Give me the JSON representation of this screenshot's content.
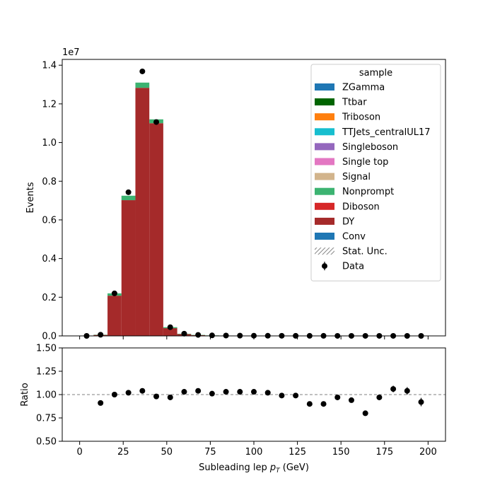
{
  "chart_data": [
    {
      "type": "bar",
      "subtype": "stacked-histogram-with-data-points",
      "yscale_label": "1e7",
      "ylabel": "Events",
      "xlim": [
        -10,
        210
      ],
      "ylim": [
        0,
        14300000.0
      ],
      "yticks": [
        "0.0",
        "0.2",
        "0.4",
        "0.6",
        "0.8",
        "1.0",
        "1.2",
        "1.4"
      ],
      "bin_edges": [
        0,
        8,
        16,
        24,
        32,
        40,
        48,
        56,
        64,
        72,
        80,
        88,
        96,
        104,
        112,
        120,
        128,
        136,
        144,
        152,
        160,
        168,
        176,
        184,
        192,
        200
      ],
      "stack_totals": [
        0,
        60000,
        2200000,
        7250000,
        13100000,
        11200000,
        450000,
        110000,
        50000,
        25000,
        18000,
        13000,
        10000,
        8000,
        6000,
        4500,
        3500,
        2700,
        2100,
        1600,
        1200,
        900,
        700,
        550,
        420
      ],
      "series": [
        {
          "name": "DY",
          "color": "#a52a2a",
          "values": [
            0,
            55000,
            2080000,
            7020000,
            12830000,
            11000000,
            400000,
            90000,
            40000,
            20000,
            14000,
            10000,
            7800,
            6200,
            4700,
            3500,
            2700,
            2100,
            1600,
            1200,
            900,
            700,
            550,
            420,
            320
          ]
        },
        {
          "name": "Nonprompt",
          "color": "#3cb371",
          "values": [
            0,
            5000,
            120000,
            230000,
            270000,
            200000,
            50000,
            20000,
            10000,
            5000,
            4000,
            3000,
            2200,
            1800,
            1300,
            1000,
            800,
            600,
            500,
            400,
            300,
            200,
            150,
            130,
            100
          ]
        }
      ],
      "data_points": {
        "name": "Data",
        "x": [
          4,
          12,
          20,
          28,
          36,
          44,
          52,
          60,
          68,
          76,
          84,
          92,
          100,
          108,
          116,
          124,
          132,
          140,
          148,
          156,
          164,
          172,
          180,
          188,
          196
        ],
        "y": [
          0,
          60000,
          2200000,
          7430000,
          13680000,
          11060000,
          450000,
          115000,
          52000,
          26000,
          18500,
          13300,
          10200,
          8100,
          6000,
          4450,
          3200,
          2450,
          2000,
          1500,
          950,
          870,
          740,
          570,
          390
        ]
      },
      "legend": {
        "title": "sample",
        "placement": "top-right",
        "entries": [
          {
            "label": "ZGamma",
            "color": "#1f77b4",
            "kind": "patch"
          },
          {
            "label": "Ttbar",
            "color": "#006400",
            "kind": "patch"
          },
          {
            "label": "Triboson",
            "color": "#ff7f0e",
            "kind": "patch"
          },
          {
            "label": "TTJets_centralUL17",
            "color": "#17becf",
            "kind": "patch"
          },
          {
            "label": "Singleboson",
            "color": "#9467bd",
            "kind": "patch"
          },
          {
            "label": "Single top",
            "color": "#e377c2",
            "kind": "patch"
          },
          {
            "label": "Signal",
            "color": "#d2b48c",
            "kind": "patch"
          },
          {
            "label": "Nonprompt",
            "color": "#3cb371",
            "kind": "patch"
          },
          {
            "label": "Diboson",
            "color": "#d62728",
            "kind": "patch"
          },
          {
            "label": "DY",
            "color": "#a52a2a",
            "kind": "patch"
          },
          {
            "label": "Conv",
            "color": "#1f77b4",
            "kind": "patch"
          },
          {
            "label": "Stat. Unc.",
            "color": "#888888",
            "kind": "hatch"
          },
          {
            "label": "Data",
            "color": "#000000",
            "kind": "errorbar"
          }
        ]
      }
    },
    {
      "type": "scatter",
      "subtype": "ratio-with-errorbars",
      "ylabel": "Ratio",
      "xlabel": "Subleading lep $p_T$ (GeV)",
      "xlim": [
        -10,
        210
      ],
      "ylim": [
        0.5,
        1.5
      ],
      "xticks": [
        "0",
        "25",
        "50",
        "75",
        "100",
        "125",
        "150",
        "175",
        "200"
      ],
      "yticks": [
        "0.50",
        "0.75",
        "1.00",
        "1.25",
        "1.50"
      ],
      "reference_line": 1.0,
      "x": [
        12,
        20,
        28,
        36,
        44,
        52,
        60,
        68,
        76,
        84,
        92,
        100,
        108,
        116,
        124,
        132,
        140,
        148,
        156,
        164,
        172,
        180,
        188,
        196
      ],
      "y": [
        0.91,
        1.0,
        1.02,
        1.04,
        0.98,
        0.97,
        1.03,
        1.04,
        1.01,
        1.03,
        1.03,
        1.03,
        1.02,
        0.99,
        0.99,
        0.9,
        0.9,
        0.97,
        0.94,
        0.8,
        0.97,
        1.06,
        1.04,
        0.92
      ],
      "yerr": [
        0.005,
        0.002,
        0.002,
        0.002,
        0.002,
        0.005,
        0.008,
        0.01,
        0.012,
        0.013,
        0.015,
        0.016,
        0.018,
        0.02,
        0.02,
        0.02,
        0.02,
        0.022,
        0.022,
        0.025,
        0.03,
        0.035,
        0.04,
        0.045
      ]
    }
  ]
}
